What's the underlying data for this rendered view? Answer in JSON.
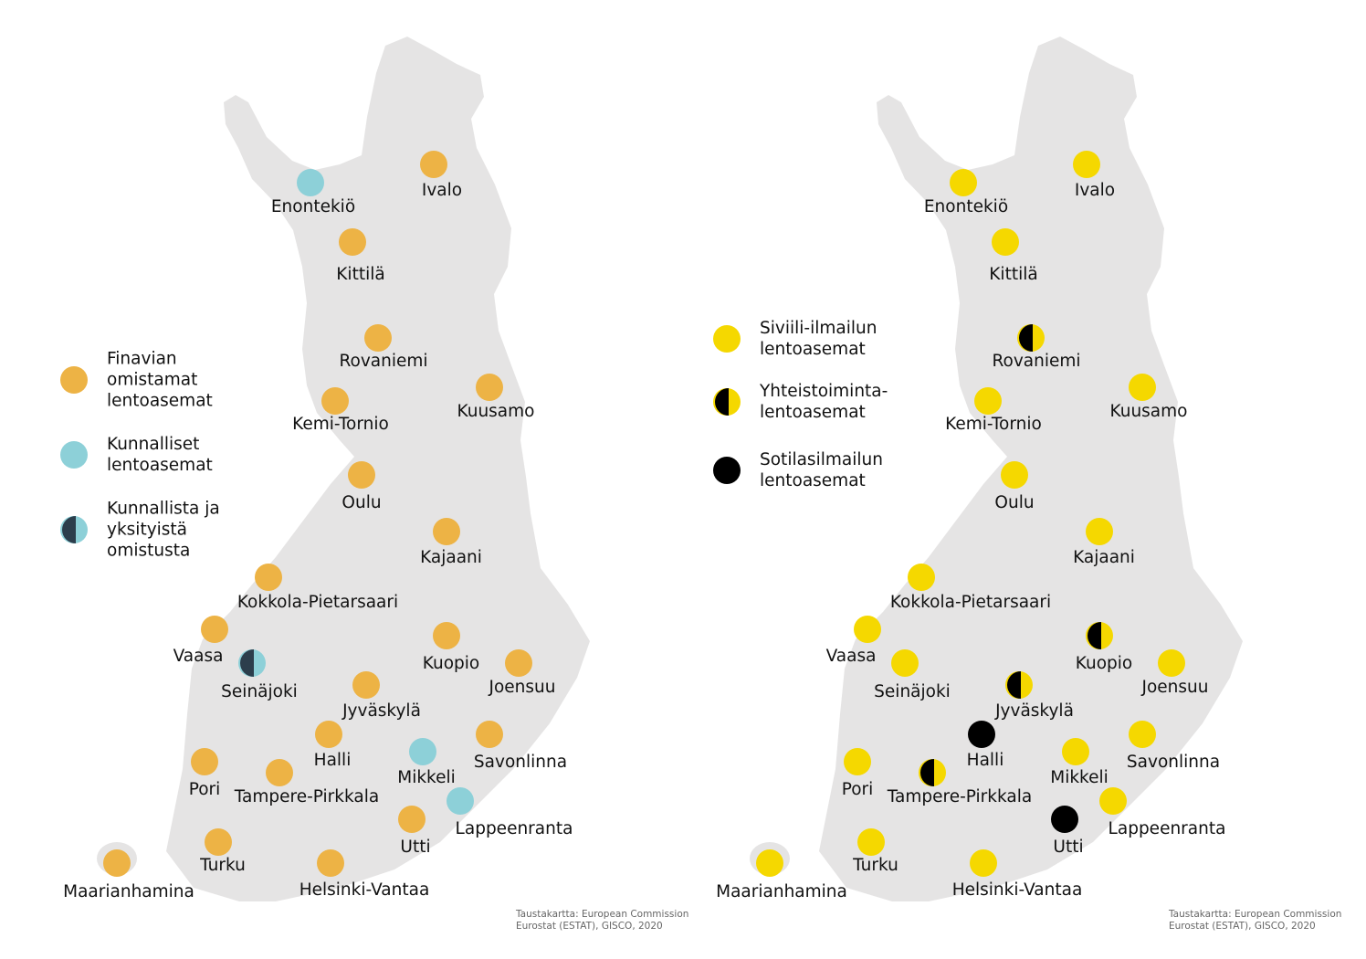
{
  "colors": {
    "map_land": "#E5E4E4",
    "finavia": "#EDB345",
    "municipal": "#8DD0D8",
    "mixed_dark": "#2C3E4C",
    "civil": "#F5D800",
    "military": "#000000"
  },
  "maps": [
    {
      "legend": [
        {
          "type": "finavia",
          "text": "Finavian\nomistamat\nlentoasemat"
        },
        {
          "type": "municipal",
          "text": "Kunnalliset\nlentoasemat"
        },
        {
          "type": "mixed",
          "text": "Kunnallista ja\nyksityistä\nomistusta"
        }
      ],
      "credit": "Taustakartta: European Commission\nEurostat (ESTAT), GISCO, 2020",
      "airports": [
        {
          "name": "Enontekiö",
          "type": "municipal"
        },
        {
          "name": "Ivalo",
          "type": "finavia"
        },
        {
          "name": "Kittilä",
          "type": "finavia"
        },
        {
          "name": "Rovaniemi",
          "type": "finavia"
        },
        {
          "name": "Kemi-Tornio",
          "type": "finavia"
        },
        {
          "name": "Kuusamo",
          "type": "finavia"
        },
        {
          "name": "Oulu",
          "type": "finavia"
        },
        {
          "name": "Kajaani",
          "type": "finavia"
        },
        {
          "name": "Kokkola-Pietarsaari",
          "type": "finavia"
        },
        {
          "name": "Vaasa",
          "type": "finavia"
        },
        {
          "name": "Seinäjoki",
          "type": "mixed"
        },
        {
          "name": "Kuopio",
          "type": "finavia"
        },
        {
          "name": "Joensuu",
          "type": "finavia"
        },
        {
          "name": "Jyväskylä",
          "type": "finavia"
        },
        {
          "name": "Halli",
          "type": "finavia"
        },
        {
          "name": "Mikkeli",
          "type": "municipal"
        },
        {
          "name": "Savonlinna",
          "type": "finavia"
        },
        {
          "name": "Pori",
          "type": "finavia"
        },
        {
          "name": "Tampere-Pirkkala",
          "type": "finavia"
        },
        {
          "name": "Lappeenranta",
          "type": "municipal"
        },
        {
          "name": "Utti",
          "type": "finavia"
        },
        {
          "name": "Turku",
          "type": "finavia"
        },
        {
          "name": "Maarianhamina",
          "type": "finavia"
        },
        {
          "name": "Helsinki-Vantaa",
          "type": "finavia"
        }
      ]
    },
    {
      "legend": [
        {
          "type": "civil",
          "text": "Siviili-ilmailun\nlentoasemat"
        },
        {
          "type": "joint",
          "text": "Yhteistoiminta-\nlentoasemat"
        },
        {
          "type": "military",
          "text": "Sotilasilmailun\nlentoasemat"
        }
      ],
      "credit": "Taustakartta: European Commission\nEurostat (ESTAT), GISCO, 2020",
      "airports": [
        {
          "name": "Enontekiö",
          "type": "civil"
        },
        {
          "name": "Ivalo",
          "type": "civil"
        },
        {
          "name": "Kittilä",
          "type": "civil"
        },
        {
          "name": "Rovaniemi",
          "type": "joint"
        },
        {
          "name": "Kemi-Tornio",
          "type": "civil"
        },
        {
          "name": "Kuusamo",
          "type": "civil"
        },
        {
          "name": "Oulu",
          "type": "civil"
        },
        {
          "name": "Kajaani",
          "type": "civil"
        },
        {
          "name": "Kokkola-Pietarsaari",
          "type": "civil"
        },
        {
          "name": "Vaasa",
          "type": "civil"
        },
        {
          "name": "Seinäjoki",
          "type": "civil"
        },
        {
          "name": "Kuopio",
          "type": "joint"
        },
        {
          "name": "Joensuu",
          "type": "civil"
        },
        {
          "name": "Jyväskylä",
          "type": "joint"
        },
        {
          "name": "Halli",
          "type": "military"
        },
        {
          "name": "Mikkeli",
          "type": "civil"
        },
        {
          "name": "Savonlinna",
          "type": "civil"
        },
        {
          "name": "Pori",
          "type": "civil"
        },
        {
          "name": "Tampere-Pirkkala",
          "type": "joint"
        },
        {
          "name": "Lappeenranta",
          "type": "civil"
        },
        {
          "name": "Utti",
          "type": "military"
        },
        {
          "name": "Turku",
          "type": "civil"
        },
        {
          "name": "Maarianhamina",
          "type": "civil"
        },
        {
          "name": "Helsinki-Vantaa",
          "type": "civil"
        }
      ]
    }
  ]
}
